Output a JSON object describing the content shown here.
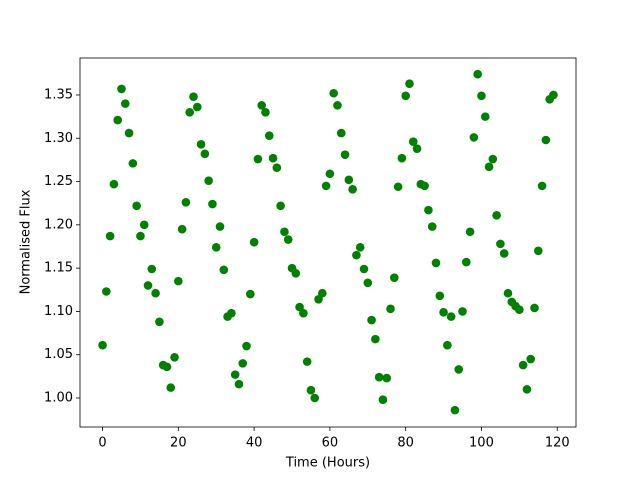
{
  "chart_data": {
    "type": "scatter",
    "xlabel": "Time (Hours)",
    "ylabel": "Normalised Flux",
    "color": "#008000",
    "x": [
      0,
      1,
      2,
      3,
      4,
      5,
      6,
      7,
      8,
      9,
      10,
      11,
      12,
      13,
      14,
      15,
      16,
      17,
      18,
      19,
      20,
      21,
      22,
      23,
      24,
      25,
      26,
      27,
      28,
      29,
      30,
      31,
      32,
      33,
      34,
      35,
      36,
      37,
      38,
      39,
      40,
      41,
      42,
      43,
      44,
      45,
      46,
      47,
      48,
      49,
      50,
      51,
      52,
      53,
      54,
      55,
      56,
      57,
      58,
      59,
      60,
      61,
      62,
      63,
      64,
      65,
      66,
      67,
      68,
      69,
      70,
      71,
      72,
      73,
      74,
      75,
      76,
      77,
      78,
      79,
      80,
      81,
      82,
      83,
      84,
      85,
      86,
      87,
      88,
      89,
      90,
      91,
      92,
      93,
      94,
      95,
      96,
      97,
      98,
      99,
      100,
      101,
      102,
      103,
      104,
      105,
      106,
      107,
      108,
      109,
      110,
      111,
      112,
      113,
      114,
      115,
      116,
      117,
      118,
      119
    ],
    "values": [
      1.061,
      1.123,
      1.187,
      1.247,
      1.321,
      1.357,
      1.34,
      1.306,
      1.271,
      1.222,
      1.187,
      1.2,
      1.13,
      1.149,
      1.121,
      1.088,
      1.038,
      1.036,
      1.012,
      1.047,
      1.135,
      1.195,
      1.226,
      1.33,
      1.348,
      1.336,
      1.293,
      1.282,
      1.251,
      1.224,
      1.174,
      1.198,
      1.148,
      1.094,
      1.098,
      1.027,
      1.016,
      1.04,
      1.06,
      1.12,
      1.18,
      1.276,
      1.338,
      1.33,
      1.303,
      1.277,
      1.266,
      1.222,
      1.192,
      1.183,
      1.15,
      1.144,
      1.105,
      1.098,
      1.042,
      1.009,
      1.0,
      1.114,
      1.121,
      1.245,
      1.259,
      1.352,
      1.338,
      1.306,
      1.281,
      1.252,
      1.241,
      1.165,
      1.174,
      1.149,
      1.133,
      1.09,
      1.068,
      1.024,
      0.998,
      1.023,
      1.103,
      1.139,
      1.244,
      1.277,
      1.349,
      1.363,
      1.296,
      1.288,
      1.247,
      1.245,
      1.217,
      1.198,
      1.156,
      1.118,
      1.099,
      1.061,
      1.094,
      0.986,
      1.033,
      1.1,
      1.157,
      1.192,
      1.301,
      1.374,
      1.349,
      1.325,
      1.267,
      1.276,
      1.211,
      1.178,
      1.167,
      1.121,
      1.111,
      1.106,
      1.102,
      1.038,
      1.01,
      1.045,
      1.104,
      1.17,
      1.245,
      1.298,
      1.345,
      1.35
    ],
    "xlim": [
      -5.95,
      124.95
    ],
    "xticks": [
      0,
      20,
      40,
      60,
      80,
      100,
      120
    ],
    "ylim": [
      0.9665,
      1.3927
    ],
    "yticks": [
      {
        "value": 1.0,
        "label": "1.00"
      },
      {
        "value": 1.05,
        "label": "1.05"
      },
      {
        "value": 1.1,
        "label": "1.10"
      },
      {
        "value": 1.15,
        "label": "1.15"
      },
      {
        "value": 1.2,
        "label": "1.20"
      },
      {
        "value": 1.25,
        "label": "1.25"
      },
      {
        "value": 1.3,
        "label": "1.30"
      },
      {
        "value": 1.35,
        "label": "1.35"
      }
    ],
    "grid": false
  }
}
